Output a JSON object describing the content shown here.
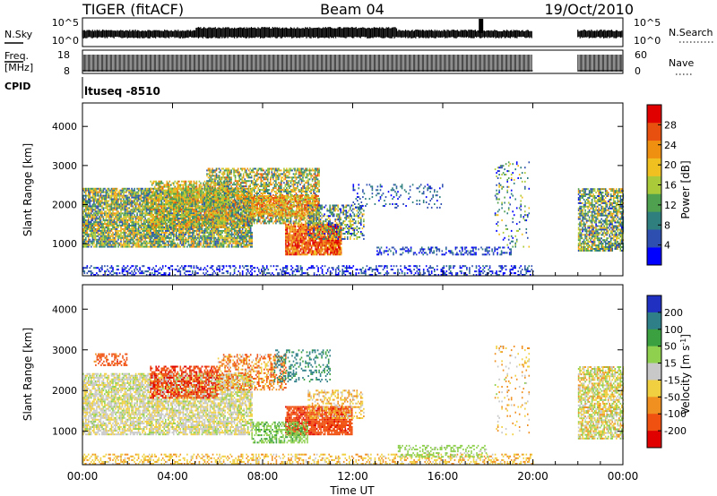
{
  "header": {
    "station": "TIGER (fitACF)",
    "beam": "Beam 04",
    "date": "19/Oct/2010"
  },
  "top_panels": {
    "nsky_label": "N.Sky",
    "nsky_ticks": [
      "10^5",
      "10^0"
    ],
    "nsearch_label": "N.Search",
    "nsearch_ticks": [
      "10^5",
      "10^0"
    ],
    "freq_label_1": "Freq.",
    "freq_label_2": "[MHz]",
    "freq_ticks": [
      "18",
      "8"
    ],
    "nave_label": "Nave",
    "nave_ticks": [
      "60",
      "0"
    ],
    "cpid_label": "CPID",
    "cpid_value": "ltuseq -8510",
    "data_gap_start_h": 20.0,
    "data_gap_end_h": 22.0
  },
  "axes": {
    "ylabel": "Slant Range [km]",
    "xlabel": "Time UT",
    "xticks": [
      "00:00",
      "04:00",
      "08:00",
      "12:00",
      "16:00",
      "20:00",
      "00:00"
    ],
    "xtick_hours": [
      0,
      4,
      8,
      12,
      16,
      20,
      24
    ],
    "yticks": [
      "1000",
      "2000",
      "3000",
      "4000"
    ],
    "ytick_values": [
      1000,
      2000,
      3000,
      4000
    ],
    "xlim": [
      0,
      24
    ],
    "ylim": [
      180,
      4600
    ]
  },
  "power_scale": {
    "label": "Power [dB]",
    "ticks": [
      "4",
      "8",
      "12",
      "16",
      "20",
      "24",
      "28"
    ],
    "tick_values": [
      4,
      8,
      12,
      16,
      20,
      24,
      28
    ],
    "range": [
      0,
      32
    ],
    "colors": [
      "#0000ff",
      "#2e4fb0",
      "#2f7f7f",
      "#4fa04f",
      "#aaca3a",
      "#f0c020",
      "#f09010",
      "#e85010",
      "#e00000"
    ]
  },
  "velocity_scale": {
    "label": "Velocity [m s^-1]",
    "ticks": [
      "200",
      "100",
      "50",
      "15",
      "-15",
      "-50",
      "-100",
      "-200"
    ],
    "colors": [
      "#2030c0",
      "#2e7f88",
      "#3aa040",
      "#8fd04f",
      "#c8c8c8",
      "#f0d040",
      "#f09020",
      "#f05010",
      "#e00000"
    ]
  },
  "chart_data": [
    {
      "type": "heatmap",
      "title": "Power [dB]",
      "xlabel": "Time UT",
      "ylabel": "Slant Range [km]",
      "xlim": [
        0,
        24
      ],
      "ylim": [
        180,
        4600
      ],
      "colorbar": {
        "label": "Power [dB]",
        "ticks": [
          4,
          8,
          12,
          16,
          20,
          24,
          28
        ],
        "range": [
          0,
          32
        ]
      },
      "regions": [
        {
          "t0": 0.0,
          "t1": 7.5,
          "r0": 900,
          "r1": 2400,
          "value": 14,
          "spread": 10,
          "density": 0.85
        },
        {
          "t0": 3.0,
          "t1": 6.5,
          "r0": 1400,
          "r1": 2600,
          "value": 18,
          "spread": 8,
          "density": 0.6
        },
        {
          "t0": 5.5,
          "t1": 10.5,
          "r0": 1500,
          "r1": 2900,
          "value": 16,
          "spread": 10,
          "density": 0.65
        },
        {
          "t0": 7.5,
          "t1": 10.5,
          "r0": 1700,
          "r1": 2200,
          "value": 22,
          "spread": 6,
          "density": 0.7
        },
        {
          "t0": 9.0,
          "t1": 11.5,
          "r0": 700,
          "r1": 1500,
          "value": 26,
          "spread": 6,
          "density": 0.9
        },
        {
          "t0": 10.0,
          "t1": 12.5,
          "r0": 1100,
          "r1": 2000,
          "value": 12,
          "spread": 10,
          "density": 0.5
        },
        {
          "t0": 12.0,
          "t1": 16.0,
          "r0": 1900,
          "r1": 2500,
          "value": 6,
          "spread": 4,
          "density": 0.15
        },
        {
          "t0": 13.0,
          "t1": 19.0,
          "r0": 700,
          "r1": 900,
          "value": 5,
          "spread": 4,
          "density": 0.35
        },
        {
          "t0": 0.0,
          "t1": 20.0,
          "r0": 180,
          "r1": 450,
          "value": 4,
          "spread": 4,
          "density": 0.35
        },
        {
          "t0": 18.3,
          "t1": 19.8,
          "r0": 900,
          "r1": 3100,
          "value": 10,
          "spread": 10,
          "density": 0.12
        },
        {
          "t0": 22.0,
          "t1": 24.0,
          "r0": 800,
          "r1": 2400,
          "value": 13,
          "spread": 10,
          "density": 0.7
        }
      ]
    },
    {
      "type": "heatmap",
      "title": "Velocity [m s^-1]",
      "xlabel": "Time UT",
      "ylabel": "Slant Range [km]",
      "xlim": [
        0,
        24
      ],
      "ylim": [
        180,
        4600
      ],
      "colorbar": {
        "label": "Velocity [m s^-1]",
        "ticks": [
          200,
          100,
          50,
          15,
          -15,
          -50,
          -100,
          -200
        ]
      },
      "regions": [
        {
          "t0": 0.0,
          "t1": 7.5,
          "r0": 900,
          "r1": 2400,
          "value": -5,
          "spread": 30,
          "density": 0.75
        },
        {
          "t0": 3.0,
          "t1": 6.0,
          "r0": 1800,
          "r1": 2600,
          "value": -180,
          "spread": 60,
          "density": 0.55
        },
        {
          "t0": 0.5,
          "t1": 2.0,
          "r0": 2600,
          "r1": 2900,
          "value": -150,
          "spread": 60,
          "density": 0.4
        },
        {
          "t0": 6.0,
          "t1": 9.0,
          "r0": 2000,
          "r1": 2900,
          "value": -80,
          "spread": 80,
          "density": 0.45
        },
        {
          "t0": 8.5,
          "t1": 11.0,
          "r0": 2200,
          "r1": 3000,
          "value": 120,
          "spread": 60,
          "density": 0.3
        },
        {
          "t0": 9.0,
          "t1": 12.0,
          "r0": 900,
          "r1": 1600,
          "value": -160,
          "spread": 60,
          "density": 0.85
        },
        {
          "t0": 7.5,
          "t1": 10.0,
          "r0": 700,
          "r1": 1200,
          "value": 40,
          "spread": 25,
          "density": 0.55
        },
        {
          "t0": 10.0,
          "t1": 12.5,
          "r0": 1300,
          "r1": 2000,
          "value": -40,
          "spread": 40,
          "density": 0.4
        },
        {
          "t0": 0.0,
          "t1": 20.0,
          "r0": 180,
          "r1": 450,
          "value": -40,
          "spread": 30,
          "density": 0.4
        },
        {
          "t0": 14.0,
          "t1": 18.0,
          "r0": 350,
          "r1": 650,
          "value": 30,
          "spread": 20,
          "density": 0.35
        },
        {
          "t0": 18.3,
          "t1": 19.8,
          "r0": 900,
          "r1": 3100,
          "value": -40,
          "spread": 60,
          "density": 0.12
        },
        {
          "t0": 22.0,
          "t1": 24.0,
          "r0": 800,
          "r1": 2600,
          "value": -10,
          "spread": 60,
          "density": 0.7
        }
      ]
    }
  ]
}
